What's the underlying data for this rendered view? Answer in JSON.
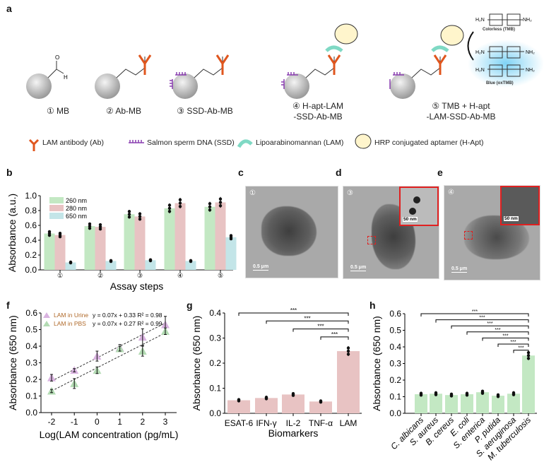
{
  "panel_labels": {
    "a": "a",
    "b": "b",
    "c": "c",
    "d": "d",
    "e": "e",
    "f": "f",
    "g": "g",
    "h": "h"
  },
  "panel_a": {
    "steps": [
      "① MB",
      "② Ab-MB",
      "③ SSD-Ab-MB",
      "④ H-apt-LAM\n-SSD-Ab-MB",
      "⑤ TMB + H-apt\n-LAM-SSD-Ab-MB"
    ],
    "tmb_colorless": "Colorless (TMB)",
    "tmb_blue": "Blue (oxTMB)",
    "legend": [
      "LAM antibody (Ab)",
      "Salmon sperm DNA (SSD)",
      "Lipoarabinomannan (LAM)",
      "HRP conjugated aptamer (H-Apt)"
    ],
    "colors": {
      "antibody": "#e0561e",
      "ssd": "#8a3fb0",
      "lam": "#7fd9c4",
      "bead": "#c8c8c8",
      "tmb_glow": "#7fd3f5"
    }
  },
  "tem": {
    "c": {
      "step": "①",
      "scale": "0.5 μm"
    },
    "d": {
      "step": "③",
      "scale": "0.5 μm",
      "inset_scale": "50 nm"
    },
    "e": {
      "step": "④",
      "scale": "0.5 μm",
      "inset_scale": "50 nm"
    }
  },
  "chart_data": [
    {
      "id": "b",
      "type": "bar",
      "xlabel": "Assay steps",
      "ylabel": "Absorbance (a.u.)",
      "ylim": [
        0,
        1.0
      ],
      "yticks": [
        "0.0",
        "0.2",
        "0.4",
        "0.6",
        "0.8",
        "1.0"
      ],
      "categories": [
        "①",
        "②",
        "③",
        "④",
        "⑤"
      ],
      "legend_position": "top-left",
      "series": [
        {
          "name": "260 nm",
          "color": "#c3e8c3",
          "values": [
            0.49,
            0.59,
            0.75,
            0.83,
            0.85
          ]
        },
        {
          "name": "280 nm",
          "color": "#e8c3c3",
          "values": [
            0.47,
            0.58,
            0.72,
            0.9,
            0.91
          ]
        },
        {
          "name": "650 nm",
          "color": "#c3e5e8",
          "values": [
            0.1,
            0.12,
            0.13,
            0.12,
            0.44
          ]
        }
      ]
    },
    {
      "id": "f",
      "type": "scatter",
      "xlabel": "Log(LAM concentration (pg/mL)",
      "ylabel": "Absorbance (650 nm)",
      "xlim": [
        -2.5,
        3.5
      ],
      "ylim": [
        0,
        0.6
      ],
      "xticks": [
        "-2",
        "-1",
        "0",
        "1",
        "2",
        "3"
      ],
      "yticks": [
        "0.0",
        "0.1",
        "0.2",
        "0.3",
        "0.4",
        "0.5",
        "0.6"
      ],
      "x": [
        -2,
        -1,
        0,
        1,
        2,
        3
      ],
      "legend_position": "top-left",
      "series": [
        {
          "name": "LAM in Urine",
          "color": "#d9b3e0",
          "equation": "y = 0.07x + 0.33 R² = 0.98",
          "slope": 0.07,
          "intercept": 0.33,
          "values": [
            0.21,
            0.255,
            0.34,
            0.39,
            0.455,
            0.53
          ],
          "errors": [
            0.02,
            0.01,
            0.03,
            0.02,
            0.05,
            0.05
          ]
        },
        {
          "name": "LAM in PBS",
          "color": "#b3dbb3",
          "equation": "y = 0.07x + 0.27 R² = 0.99",
          "slope": 0.07,
          "intercept": 0.27,
          "values": [
            0.13,
            0.175,
            0.255,
            0.385,
            0.37,
            0.49
          ],
          "errors": [
            0.01,
            0.03,
            0.02,
            0.015,
            0.03,
            0.02
          ]
        }
      ]
    },
    {
      "id": "g",
      "type": "bar",
      "xlabel": "Biomarkers",
      "ylabel": "Absorbance (650 nm)",
      "ylim": [
        0,
        0.4
      ],
      "yticks": [
        "0.0",
        "0.1",
        "0.2",
        "0.3",
        "0.4"
      ],
      "categories": [
        "ESAT-6",
        "IFN-γ",
        "IL-2",
        "TNF-α",
        "LAM"
      ],
      "series": [
        {
          "color": "#e8c3c3",
          "values": [
            0.052,
            0.061,
            0.075,
            0.047,
            0.248
          ]
        }
      ],
      "significance": "***"
    },
    {
      "id": "h",
      "type": "bar",
      "xlabel": "",
      "ylabel": "Absorbance (650 nm)",
      "ylim": [
        0,
        0.6
      ],
      "yticks": [
        "0.0",
        "0.1",
        "0.2",
        "0.3",
        "0.4",
        "0.5",
        "0.6"
      ],
      "categories": [
        "C. albicans",
        "S. aureus",
        "B. cereus",
        "E. coli",
        "S. enterica",
        "P. putida",
        "S. aeruginosa",
        "M. tuberculosis"
      ],
      "series": [
        {
          "color": "#c3e8c3",
          "values": [
            0.115,
            0.118,
            0.11,
            0.115,
            0.127,
            0.106,
            0.118,
            0.348
          ]
        }
      ],
      "significance": "***"
    }
  ]
}
